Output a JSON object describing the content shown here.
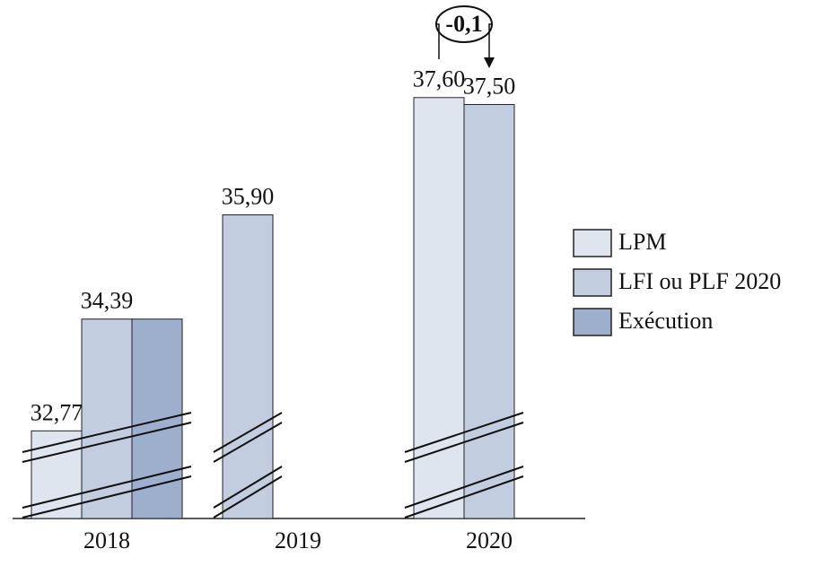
{
  "chart_data": {
    "type": "bar",
    "categories": [
      "2018",
      "2019",
      "2020"
    ],
    "series": [
      {
        "name": "LPM",
        "color": "#dfe5ef",
        "values": [
          32.77,
          null,
          37.6
        ],
        "value_labels": [
          "32,77",
          null,
          "37,60"
        ]
      },
      {
        "name": "LFI ou PLF 2020",
        "color": "#c2cde0",
        "values": [
          34.39,
          35.9,
          37.5
        ],
        "value_labels": [
          "34,39",
          "35,90",
          "37,50"
        ]
      },
      {
        "name": "Exécution",
        "color": "#9dafcd",
        "values": [
          34.39,
          null,
          null
        ]
      }
    ],
    "ylim": [
      31.5,
      38
    ],
    "annotation": "-0,1",
    "legend": "right"
  }
}
